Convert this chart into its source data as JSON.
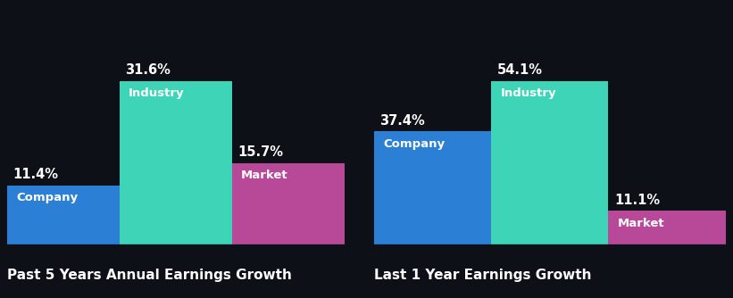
{
  "background_color": "#0d1117",
  "groups": [
    {
      "title": "Past 5 Years Annual Earnings Growth",
      "bars": [
        {
          "label": "Company",
          "value": 11.4,
          "color": "#2b7fd4"
        },
        {
          "label": "Industry",
          "value": 31.6,
          "color": "#3dd4b8"
        },
        {
          "label": "Market",
          "value": 15.7,
          "color": "#b84898"
        }
      ]
    },
    {
      "title": "Last 1 Year Earnings Growth",
      "bars": [
        {
          "label": "Company",
          "value": 37.4,
          "color": "#2b7fd4"
        },
        {
          "label": "Industry",
          "value": 54.1,
          "color": "#3dd4b8"
        },
        {
          "label": "Market",
          "value": 11.1,
          "color": "#b84898"
        }
      ]
    }
  ],
  "text_color": "#ffffff",
  "value_fontsize": 10.5,
  "label_fontsize": 9.5,
  "title_fontsize": 11,
  "bar_width": 1.0,
  "divider_color": "#2a3050",
  "divider_linewidth": 1.0
}
